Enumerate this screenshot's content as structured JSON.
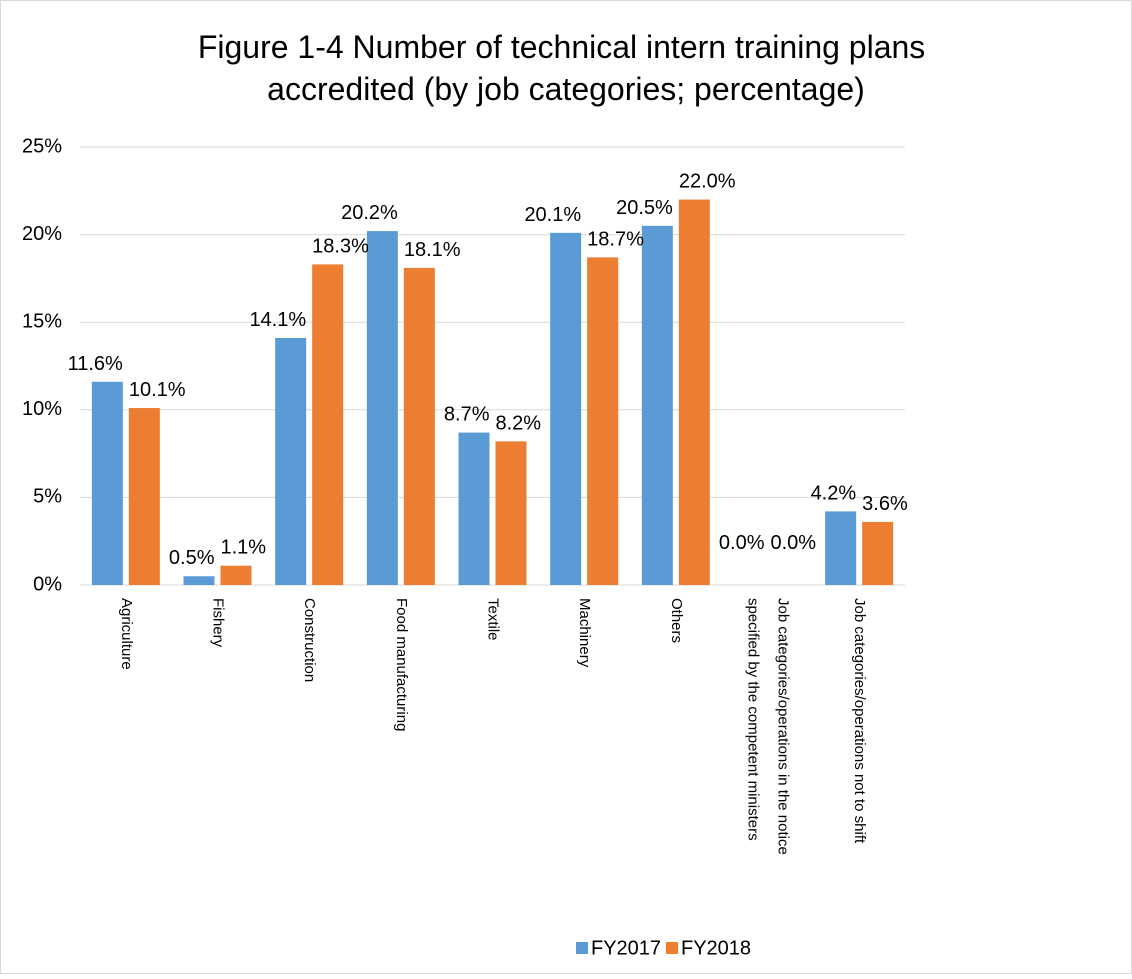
{
  "chart_data": {
    "type": "bar",
    "title": "Figure 1-4 Number of technical intern training plans accredited (by job categories; percentage)",
    "categories": [
      "Agriculture",
      "Fishery",
      "Construction",
      "Food manufacturing",
      "Textile",
      "Machinery",
      "Others",
      "Job categories/operations in the notice specified by the competent ministers",
      "Job categories/operations not to shift"
    ],
    "series": [
      {
        "name": "FY2017",
        "color": "#5b9bd5",
        "values": [
          11.6,
          0.5,
          14.1,
          20.2,
          8.7,
          20.1,
          20.5,
          0.0,
          4.2
        ],
        "value_labels": [
          "11.6%",
          "0.5%",
          "14.1%",
          "20.2%",
          "8.7%",
          "20.1%",
          "20.5%",
          "0.0%",
          "4.2%"
        ]
      },
      {
        "name": "FY2018",
        "color": "#ed7d31",
        "values": [
          10.1,
          1.1,
          18.3,
          18.1,
          8.2,
          18.7,
          22.0,
          0.0,
          3.6
        ],
        "value_labels": [
          "10.1%",
          "1.1%",
          "18.3%",
          "18.1%",
          "8.2%",
          "18.7%",
          "22.0%",
          "0.0%",
          "3.6%"
        ]
      }
    ],
    "ylim": [
      0,
      25
    ],
    "yticks": [
      {
        "value": 0,
        "label": "0%"
      },
      {
        "value": 5,
        "label": "5%"
      },
      {
        "value": 10,
        "label": "10%"
      },
      {
        "value": 15,
        "label": "15%"
      },
      {
        "value": 20,
        "label": "20%"
      },
      {
        "value": 25,
        "label": "25%"
      }
    ],
    "grid": true,
    "legend": "bottom"
  }
}
